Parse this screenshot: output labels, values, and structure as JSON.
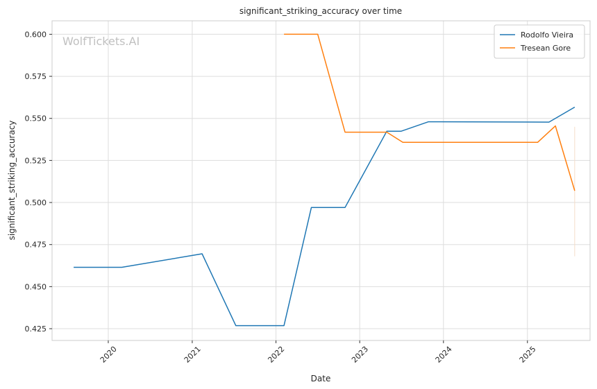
{
  "chart_data": {
    "type": "line",
    "title": "significant_striking_accuracy over time",
    "xlabel": "Date",
    "ylabel": "significant_striking_accuracy",
    "watermark": "WolfTickets.AI",
    "x_range": [
      "2019-05-01",
      "2025-10-01"
    ],
    "ylim": [
      0.418,
      0.608
    ],
    "x_ticks": [
      {
        "label": "2020",
        "date": "2020-01-01"
      },
      {
        "label": "2021",
        "date": "2021-01-01"
      },
      {
        "label": "2022",
        "date": "2022-01-01"
      },
      {
        "label": "2023",
        "date": "2023-01-01"
      },
      {
        "label": "2024",
        "date": "2024-01-01"
      },
      {
        "label": "2025",
        "date": "2025-01-01"
      }
    ],
    "y_ticks": [
      {
        "label": "0.425",
        "value": 0.425
      },
      {
        "label": "0.450",
        "value": 0.45
      },
      {
        "label": "0.475",
        "value": 0.475
      },
      {
        "label": "0.500",
        "value": 0.5
      },
      {
        "label": "0.525",
        "value": 0.525
      },
      {
        "label": "0.550",
        "value": 0.55
      },
      {
        "label": "0.575",
        "value": 0.575
      },
      {
        "label": "0.600",
        "value": 0.6
      }
    ],
    "grid": true,
    "legend_position": "top-right",
    "series": [
      {
        "name": "Rodolfo Vieira",
        "color": "#1f77b4",
        "points": [
          {
            "date": "2019-08-03",
            "value": 0.4615
          },
          {
            "date": "2020-02-29",
            "value": 0.4615
          },
          {
            "date": "2021-02-13",
            "value": 0.4695
          },
          {
            "date": "2021-07-10",
            "value": 0.4268
          },
          {
            "date": "2022-02-05",
            "value": 0.4268
          },
          {
            "date": "2022-06-04",
            "value": 0.497
          },
          {
            "date": "2022-10-29",
            "value": 0.497
          },
          {
            "date": "2023-04-29",
            "value": 0.5424
          },
          {
            "date": "2023-07-01",
            "value": 0.5424
          },
          {
            "date": "2023-10-28",
            "value": 0.548
          },
          {
            "date": "2025-04-05",
            "value": 0.5478
          },
          {
            "date": "2025-07-26",
            "value": 0.5567
          }
        ]
      },
      {
        "name": "Tresean Gore",
        "color": "#ff7f0e",
        "points": [
          {
            "date": "2022-02-05",
            "value": 0.6
          },
          {
            "date": "2022-07-02",
            "value": 0.6
          },
          {
            "date": "2022-10-29",
            "value": 0.5418
          },
          {
            "date": "2023-04-29",
            "value": 0.5418
          },
          {
            "date": "2023-07-08",
            "value": 0.5358
          },
          {
            "date": "2025-02-15",
            "value": 0.5358
          },
          {
            "date": "2025-05-03",
            "value": 0.5455
          },
          {
            "date": "2025-07-26",
            "value": 0.507
          }
        ]
      }
    ],
    "annotation_line": {
      "date": "2025-07-26",
      "from": 0.468,
      "to": 0.545,
      "color": "#f5ddc8"
    }
  }
}
